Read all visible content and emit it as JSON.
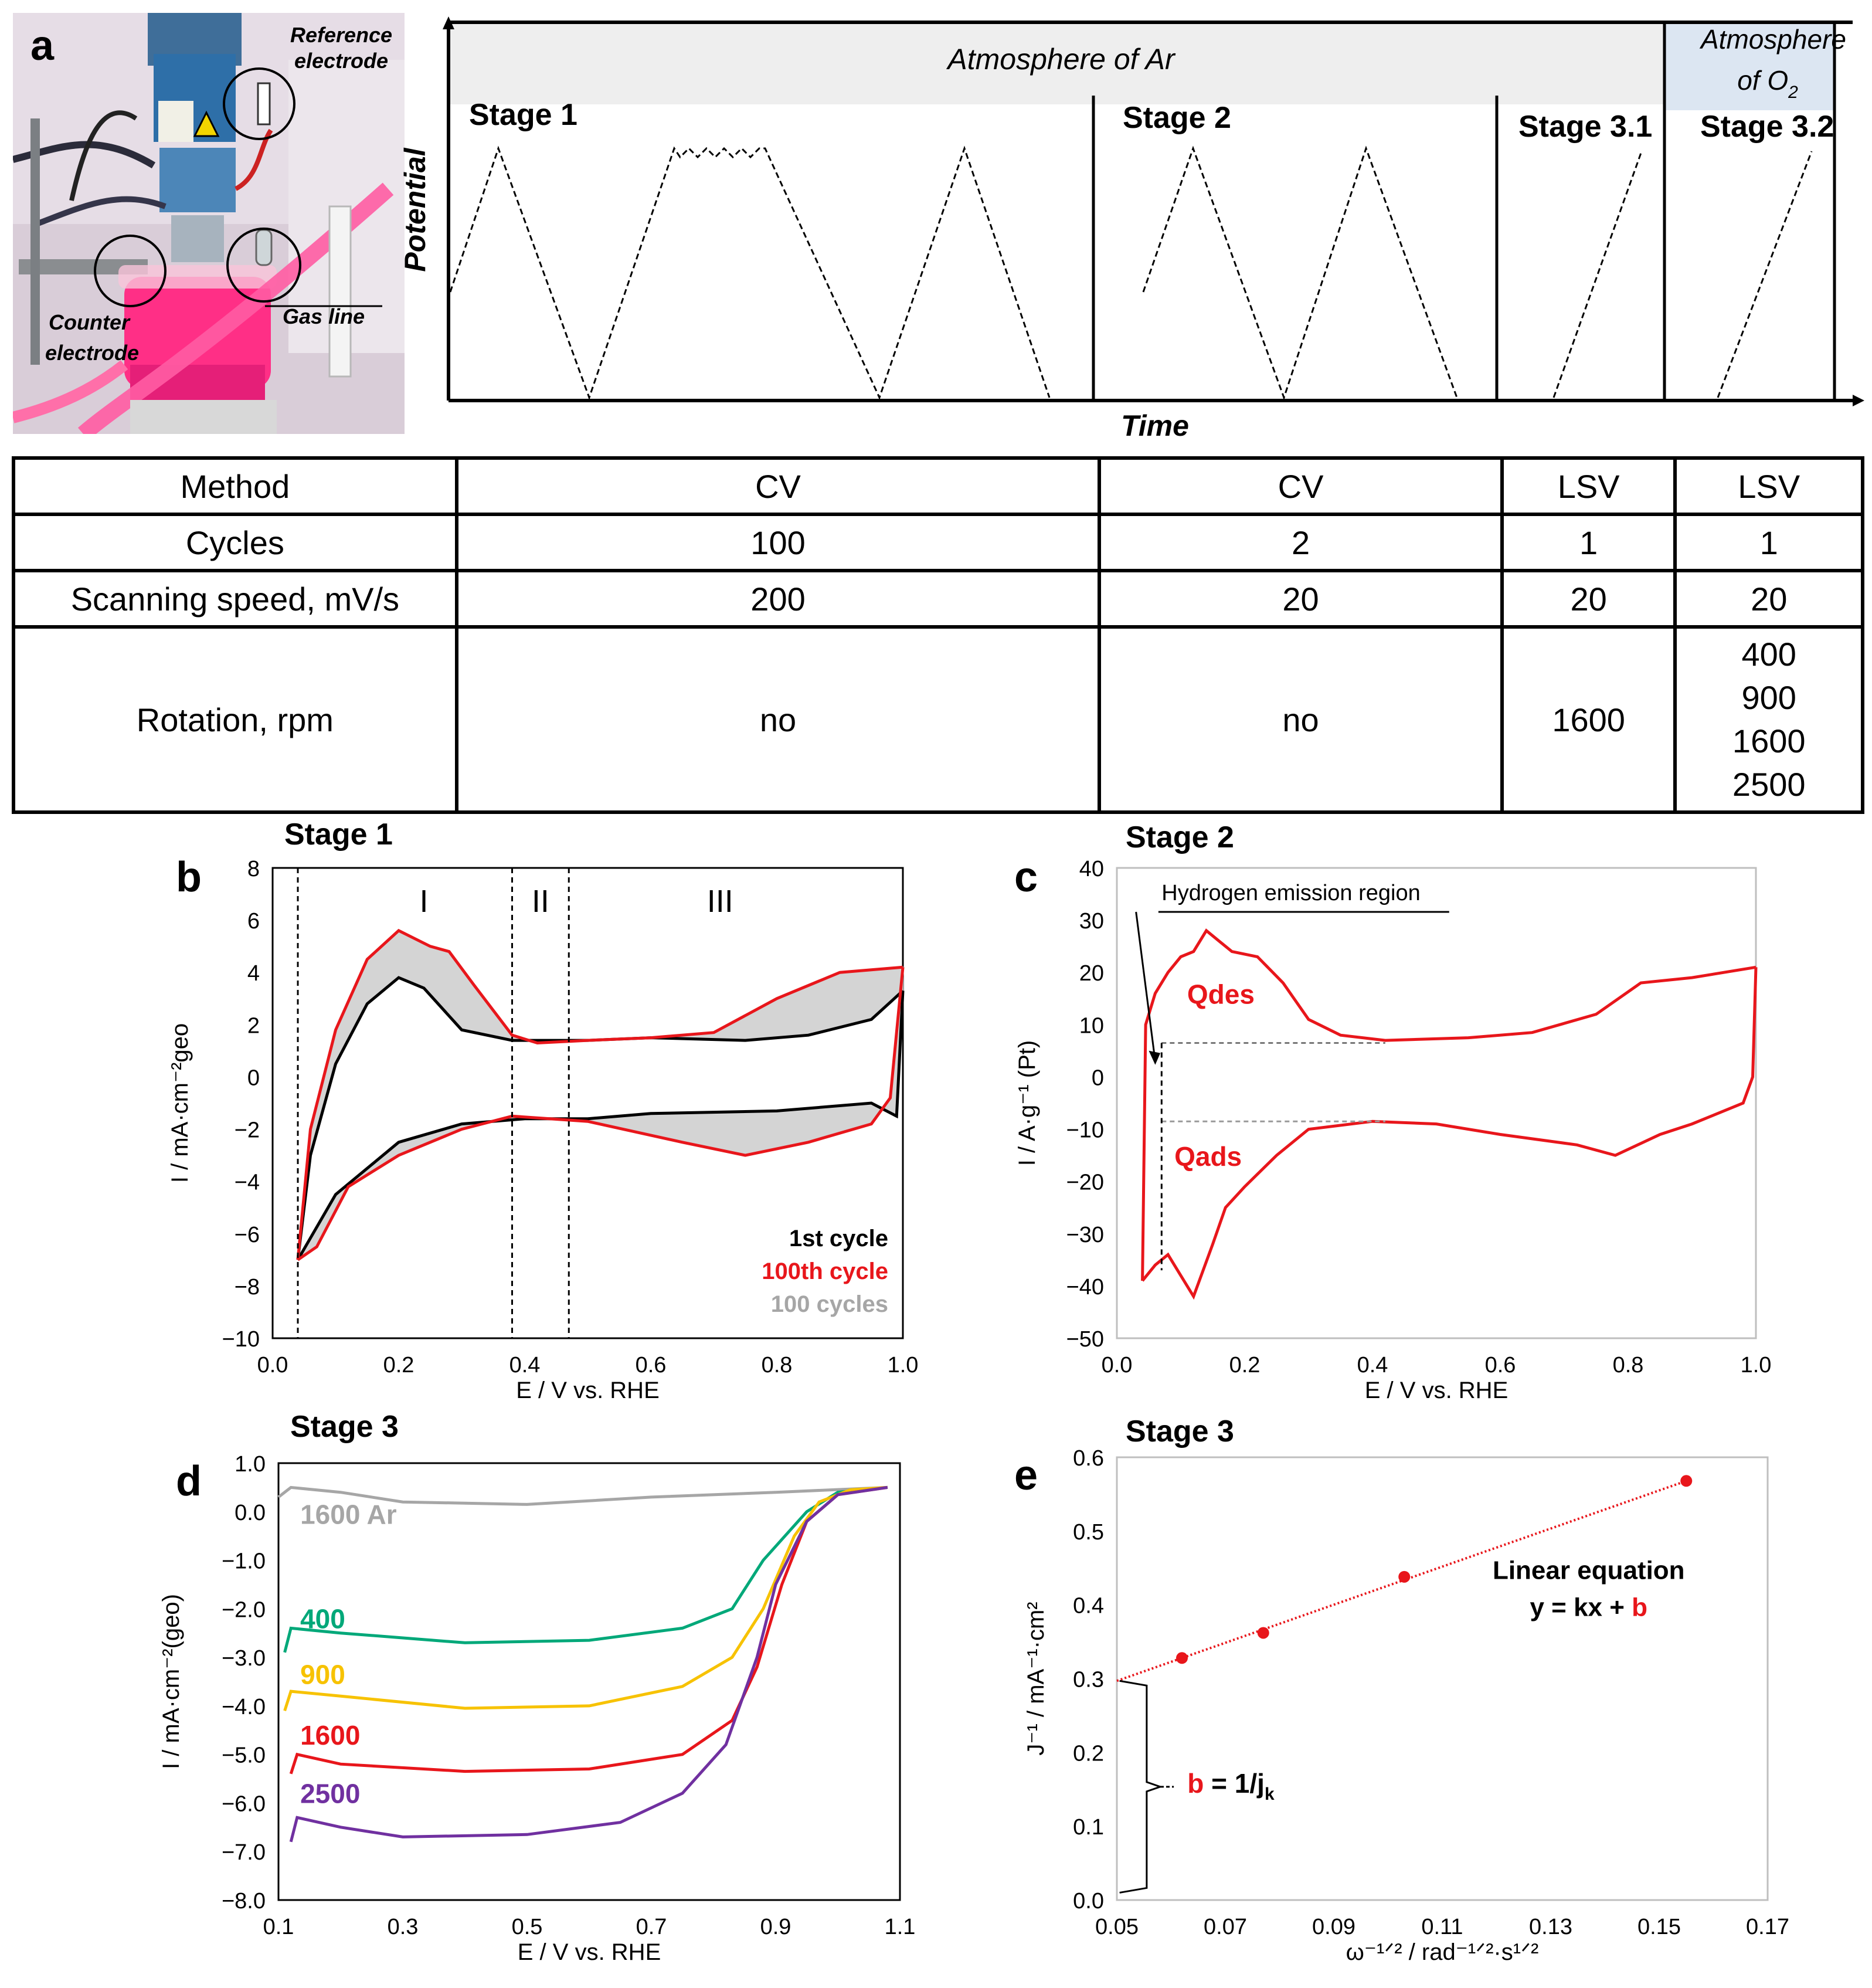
{
  "panel_a": {
    "label": "a",
    "photo_labels": {
      "reference": "Reference electrode",
      "counter": "Counter electrode",
      "gas": "Gas line"
    },
    "diagram": {
      "atmosphere_ar": "Atmosphere of Ar",
      "atmosphere_o2_line1": "Atmosphere",
      "atmosphere_o2_line2": "of O",
      "atmosphere_o2_sub": "2",
      "stage1": "Stage 1",
      "stage2": "Stage 2",
      "stage31": "Stage 3.1",
      "stage32": "Stage 3.2",
      "ylabel": "Potential",
      "xlabel": "Time"
    },
    "table": {
      "rows": [
        {
          "label": "Method",
          "cells": [
            "CV",
            "CV",
            "LSV",
            "LSV"
          ]
        },
        {
          "label": "Cycles",
          "cells": [
            "100",
            "2",
            "1",
            "1"
          ]
        },
        {
          "label": "Scanning speed, mV/s",
          "cells": [
            "200",
            "20",
            "20",
            "20"
          ]
        },
        {
          "label": "Rotation, rpm",
          "cells": [
            "no",
            "no",
            "1600"
          ],
          "last_cell": [
            "400",
            "900",
            "1600",
            "2500"
          ]
        }
      ]
    }
  },
  "chart_data": [
    {
      "panel": "b",
      "type": "line",
      "title": "Stage 1",
      "xlabel": "E / V vs. RHE",
      "ylabel": "I / mA·cm⁻²geo",
      "xlim": [
        0.0,
        1.0
      ],
      "ylim": [
        -10,
        8
      ],
      "xticks": [
        "0.0",
        "0.2",
        "0.4",
        "0.6",
        "0.8",
        "1.0"
      ],
      "yticks": [
        "8",
        "6",
        "4",
        "2",
        "0",
        "−2",
        "−4",
        "−6",
        "−8",
        "−10"
      ],
      "regions": [
        "I",
        "II",
        "III"
      ],
      "region_bounds": [
        0.04,
        0.38,
        0.47
      ],
      "legend": [
        "1st cycle",
        "100th cycle",
        "100 cycles"
      ],
      "series": [
        {
          "name": "1st cycle",
          "color": "#000000",
          "anodic": [
            [
              0.04,
              -7.0
            ],
            [
              0.06,
              -3.0
            ],
            [
              0.1,
              0.5
            ],
            [
              0.15,
              2.8
            ],
            [
              0.2,
              3.8
            ],
            [
              0.24,
              3.4
            ],
            [
              0.3,
              1.8
            ],
            [
              0.38,
              1.4
            ],
            [
              0.5,
              1.4
            ],
            [
              0.6,
              1.5
            ],
            [
              0.75,
              1.4
            ],
            [
              0.85,
              1.6
            ],
            [
              0.95,
              2.2
            ],
            [
              1.0,
              3.3
            ]
          ],
          "cathodic": [
            [
              1.0,
              3.3
            ],
            [
              0.99,
              -1.5
            ],
            [
              0.95,
              -1.0
            ],
            [
              0.8,
              -1.3
            ],
            [
              0.6,
              -1.4
            ],
            [
              0.5,
              -1.6
            ],
            [
              0.4,
              -1.6
            ],
            [
              0.3,
              -1.8
            ],
            [
              0.2,
              -2.5
            ],
            [
              0.1,
              -4.5
            ],
            [
              0.04,
              -7.0
            ]
          ]
        },
        {
          "name": "100th cycle",
          "color": "#e8161b",
          "anodic": [
            [
              0.04,
              -7.0
            ],
            [
              0.06,
              -2.0
            ],
            [
              0.1,
              1.8
            ],
            [
              0.15,
              4.5
            ],
            [
              0.2,
              5.6
            ],
            [
              0.25,
              5.0
            ],
            [
              0.28,
              4.8
            ],
            [
              0.32,
              3.5
            ],
            [
              0.38,
              1.6
            ],
            [
              0.42,
              1.3
            ],
            [
              0.5,
              1.4
            ],
            [
              0.6,
              1.5
            ],
            [
              0.7,
              1.7
            ],
            [
              0.8,
              3.0
            ],
            [
              0.9,
              4.0
            ],
            [
              1.0,
              4.2
            ]
          ],
          "cathodic": [
            [
              1.0,
              4.2
            ],
            [
              0.98,
              -0.8
            ],
            [
              0.95,
              -1.8
            ],
            [
              0.85,
              -2.5
            ],
            [
              0.75,
              -3.0
            ],
            [
              0.65,
              -2.5
            ],
            [
              0.5,
              -1.7
            ],
            [
              0.38,
              -1.5
            ],
            [
              0.3,
              -2.0
            ],
            [
              0.2,
              -3.0
            ],
            [
              0.12,
              -4.2
            ],
            [
              0.07,
              -6.5
            ],
            [
              0.04,
              -7.0
            ]
          ]
        }
      ]
    },
    {
      "panel": "c",
      "type": "line",
      "title": "Stage 2",
      "xlabel": "E / V vs. RHE",
      "ylabel": "I / A·g⁻¹ (Pt)",
      "xlim": [
        0.0,
        1.0
      ],
      "ylim": [
        -50,
        40
      ],
      "xticks": [
        "0.0",
        "0.2",
        "0.4",
        "0.6",
        "0.8",
        "1.0"
      ],
      "yticks": [
        "40",
        "30",
        "20",
        "10",
        "0",
        "−10",
        "−20",
        "−30",
        "−40",
        "−50"
      ],
      "annotations": {
        "hydrogen": "Hydrogen emission region",
        "qdes": "Qdes",
        "qads": "Qads"
      },
      "series": [
        {
          "name": "CV",
          "color": "#e8161b",
          "anodic": [
            [
              0.04,
              -39
            ],
            [
              0.045,
              10
            ],
            [
              0.06,
              16
            ],
            [
              0.08,
              20
            ],
            [
              0.1,
              23
            ],
            [
              0.12,
              24
            ],
            [
              0.14,
              28
            ],
            [
              0.16,
              26
            ],
            [
              0.18,
              24
            ],
            [
              0.22,
              23
            ],
            [
              0.26,
              18
            ],
            [
              0.3,
              11
            ],
            [
              0.35,
              8
            ],
            [
              0.42,
              7
            ],
            [
              0.55,
              7.5
            ],
            [
              0.65,
              8.5
            ],
            [
              0.75,
              12
            ],
            [
              0.82,
              18
            ],
            [
              0.9,
              19
            ],
            [
              0.95,
              20
            ],
            [
              1.0,
              21
            ]
          ],
          "cathodic": [
            [
              1.0,
              21
            ],
            [
              0.995,
              0
            ],
            [
              0.98,
              -5
            ],
            [
              0.9,
              -9
            ],
            [
              0.85,
              -11
            ],
            [
              0.78,
              -15
            ],
            [
              0.72,
              -13
            ],
            [
              0.6,
              -11
            ],
            [
              0.5,
              -9
            ],
            [
              0.4,
              -8.5
            ],
            [
              0.3,
              -10
            ],
            [
              0.25,
              -15
            ],
            [
              0.2,
              -21
            ],
            [
              0.17,
              -25
            ],
            [
              0.15,
              -32
            ],
            [
              0.12,
              -42
            ],
            [
              0.1,
              -38
            ],
            [
              0.08,
              -34
            ],
            [
              0.06,
              -36
            ],
            [
              0.04,
              -39
            ]
          ]
        }
      ]
    },
    {
      "panel": "d",
      "type": "line",
      "title": "Stage 3",
      "xlabel": "E / V vs. RHE",
      "ylabel": "I / mA·cm⁻²(geo)",
      "xlim": [
        0.1,
        1.1
      ],
      "ylim": [
        -8.0,
        1.0
      ],
      "xticks": [
        "0.1",
        "0.3",
        "0.5",
        "0.7",
        "0.9",
        "1.1"
      ],
      "yticks": [
        "1.0",
        "0.0",
        "−1.0",
        "−2.0",
        "−3.0",
        "−4.0",
        "−5.0",
        "−6.0",
        "−7.0",
        "−8.0"
      ],
      "series": [
        {
          "name": "1600 Ar",
          "color": "#a6a6a6",
          "points": [
            [
              0.1,
              0.3
            ],
            [
              0.12,
              0.5
            ],
            [
              0.2,
              0.4
            ],
            [
              0.3,
              0.2
            ],
            [
              0.5,
              0.15
            ],
            [
              0.7,
              0.3
            ],
            [
              0.9,
              0.4
            ],
            [
              1.08,
              0.5
            ]
          ]
        },
        {
          "name": "400",
          "color": "#00a879",
          "points": [
            [
              0.11,
              -2.9
            ],
            [
              0.12,
              -2.4
            ],
            [
              0.2,
              -2.5
            ],
            [
              0.4,
              -2.7
            ],
            [
              0.6,
              -2.65
            ],
            [
              0.75,
              -2.4
            ],
            [
              0.83,
              -2.0
            ],
            [
              0.88,
              -1.0
            ],
            [
              0.95,
              0.0
            ],
            [
              1.0,
              0.4
            ],
            [
              1.08,
              0.5
            ]
          ]
        },
        {
          "name": "900",
          "color": "#f7c200",
          "points": [
            [
              0.11,
              -4.1
            ],
            [
              0.12,
              -3.7
            ],
            [
              0.2,
              -3.8
            ],
            [
              0.4,
              -4.05
            ],
            [
              0.6,
              -4.0
            ],
            [
              0.75,
              -3.6
            ],
            [
              0.83,
              -3.0
            ],
            [
              0.88,
              -2.0
            ],
            [
              0.93,
              -0.5
            ],
            [
              0.97,
              0.2
            ],
            [
              1.02,
              0.45
            ],
            [
              1.08,
              0.5
            ]
          ]
        },
        {
          "name": "1600",
          "color": "#e8161b",
          "points": [
            [
              0.12,
              -5.4
            ],
            [
              0.13,
              -5.0
            ],
            [
              0.2,
              -5.2
            ],
            [
              0.4,
              -5.35
            ],
            [
              0.6,
              -5.3
            ],
            [
              0.75,
              -5.0
            ],
            [
              0.83,
              -4.3
            ],
            [
              0.87,
              -3.2
            ],
            [
              0.91,
              -1.5
            ],
            [
              0.95,
              -0.2
            ],
            [
              1.0,
              0.35
            ],
            [
              1.08,
              0.5
            ]
          ]
        },
        {
          "name": "2500",
          "color": "#7030a0",
          "points": [
            [
              0.12,
              -6.8
            ],
            [
              0.13,
              -6.3
            ],
            [
              0.2,
              -6.5
            ],
            [
              0.3,
              -6.7
            ],
            [
              0.5,
              -6.65
            ],
            [
              0.65,
              -6.4
            ],
            [
              0.75,
              -5.8
            ],
            [
              0.82,
              -4.8
            ],
            [
              0.87,
              -3.0
            ],
            [
              0.9,
              -1.5
            ],
            [
              0.95,
              -0.2
            ],
            [
              1.0,
              0.35
            ],
            [
              1.08,
              0.5
            ]
          ]
        }
      ]
    },
    {
      "panel": "e",
      "type": "scatter",
      "title": "Stage 3",
      "xlabel": "ω⁻¹ᐟ² / rad⁻¹ᐟ²·s¹ᐟ²",
      "ylabel": "J⁻¹ / mA⁻¹·cm²",
      "xlim": [
        0.05,
        0.17
      ],
      "ylim": [
        0.0,
        0.6
      ],
      "xticks": [
        "0.05",
        "0.07",
        "0.09",
        "0.11",
        "0.13",
        "0.15",
        "0.17"
      ],
      "yticks": [
        "0.6",
        "0.5",
        "0.4",
        "0.3",
        "0.2",
        "0.1",
        "0.0"
      ],
      "points": [
        [
          0.062,
          0.328
        ],
        [
          0.077,
          0.362
        ],
        [
          0.103,
          0.438
        ],
        [
          0.155,
          0.568
        ]
      ],
      "fit": [
        [
          0.05,
          0.297
        ],
        [
          0.155,
          0.568
        ]
      ],
      "annotations": {
        "eq_title": "Linear equation",
        "eq_body": "y = kx + ",
        "eq_b": "b",
        "b_label": "b",
        "b_rest": " = 1/j",
        "b_sub": "k"
      }
    }
  ]
}
